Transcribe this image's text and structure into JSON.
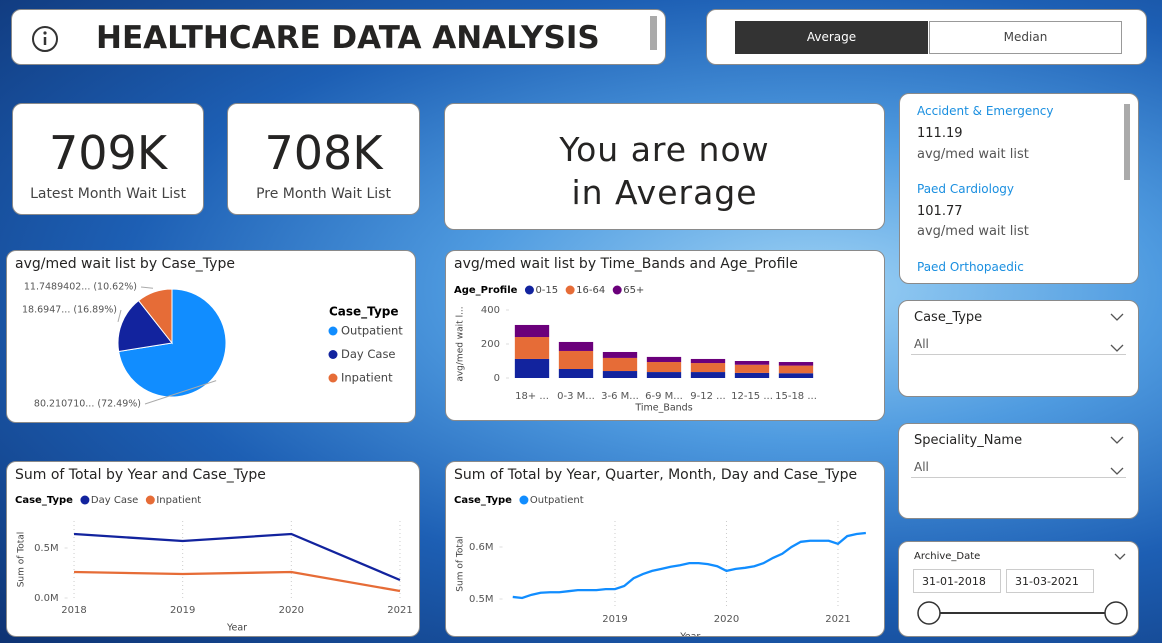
{
  "header": {
    "title": "HEALTHCARE DATA ANALYSIS"
  },
  "toggle": {
    "options": [
      "Average",
      "Median"
    ]
  },
  "cards": [
    {
      "value": "709K",
      "label": "Latest Month Wait List"
    },
    {
      "value": "708K",
      "label": "Pre Month Wait List"
    }
  ],
  "banner": {
    "text": "You are now in Average"
  },
  "list": {
    "items": [
      {
        "name": "Accident & Emergency",
        "value": 111.19,
        "label": "avg/med wait list"
      },
      {
        "name": "Paed Cardiology",
        "value": 101.77,
        "label": "avg/med wait list"
      },
      {
        "name": "Paed Orthopaedic"
      }
    ]
  },
  "slicers": [
    {
      "title": "Case_Type",
      "value": "All"
    },
    {
      "title": "Speciality_Name",
      "value": "All"
    },
    {
      "title": "Archive_Date",
      "from": "31-01-2018",
      "to": "31-03-2021"
    }
  ],
  "chart_data": [
    {
      "type": "pie",
      "title": "avg/med wait list by Case_Type",
      "legend_title": "Case_Type",
      "categories": [
        "Outpatient",
        "Day Case",
        "Inpatient"
      ],
      "values": [
        80.21071,
        18.6947,
        11.7489402
      ],
      "value_labels": [
        "80.210710... (72.49%)",
        "18.6947... (16.89%)",
        "11.7489402... (10.62%)"
      ],
      "colors": [
        "#118DFF",
        "#12239E",
        "#E66C37"
      ]
    },
    {
      "type": "bar",
      "stacked": true,
      "title": "avg/med wait list by Time_Bands and Age_Profile",
      "legend_title": "Age_Profile",
      "x_label": "Time_Bands",
      "y_label": "avg/med wait l...",
      "categories": [
        "18+ ...",
        "0-3 M...",
        "3-6 M...",
        "6-9 M...",
        "9-12 ...",
        "12-15 ...",
        "15-18 ..."
      ],
      "series": [
        {
          "name": "0-15",
          "color": "#12239E",
          "values": [
            112,
            53,
            41,
            35,
            35,
            30,
            28
          ]
        },
        {
          "name": "16-64",
          "color": "#E66C37",
          "values": [
            129,
            106,
            77,
            59,
            53,
            48,
            45
          ]
        },
        {
          "name": "65+",
          "color": "#6B007B",
          "values": [
            71,
            53,
            35,
            30,
            24,
            22,
            21
          ]
        }
      ],
      "ylim": [
        0,
        400
      ],
      "yticks": [
        0,
        200,
        400
      ]
    },
    {
      "type": "line",
      "title": "Sum of Total by Year and Case_Type",
      "legend_title": "Case_Type",
      "x_label": "Year",
      "y_label": "Sum of Total",
      "x": [
        2018,
        2019,
        2020,
        2021
      ],
      "series": [
        {
          "name": "Day Case",
          "color": "#12239E",
          "values": [
            640000,
            570000,
            640000,
            180000
          ]
        },
        {
          "name": "Inpatient",
          "color": "#E66C37",
          "values": [
            260000,
            240000,
            260000,
            70000
          ]
        }
      ],
      "xlim": [
        2017.95,
        2021.05
      ],
      "xticks": [
        2018,
        2019,
        2020,
        2021
      ],
      "ylim": [
        0,
        770000
      ],
      "yticks": [
        {
          "value": 0,
          "label": "0.0M"
        },
        {
          "value": 500000,
          "label": "0.5M"
        }
      ],
      "grid": true
    },
    {
      "type": "line",
      "title": "Sum of Total by Year, Quarter, Month, Day and Case_Type",
      "legend_title": "Case_Type",
      "x_label": "Year",
      "y_label": "Sum of Total",
      "x": [
        2018.083,
        2018.167,
        2018.25,
        2018.333,
        2018.417,
        2018.5,
        2018.583,
        2018.667,
        2018.75,
        2018.833,
        2018.917,
        2019,
        2019.083,
        2019.167,
        2019.25,
        2019.333,
        2019.417,
        2019.5,
        2019.583,
        2019.667,
        2019.75,
        2019.833,
        2019.917,
        2020,
        2020.083,
        2020.167,
        2020.25,
        2020.333,
        2020.417,
        2020.5,
        2020.583,
        2020.667,
        2020.75,
        2020.833,
        2020.917,
        2021,
        2021.083,
        2021.167,
        2021.25
      ],
      "series": [
        {
          "name": "Outpatient",
          "color": "#118DFF",
          "values": [
            504000,
            502000,
            508000,
            512000,
            513000,
            513000,
            515000,
            517000,
            517000,
            517000,
            519000,
            519000,
            525000,
            540000,
            548000,
            554000,
            558000,
            562000,
            565000,
            569000,
            569000,
            567000,
            563000,
            554000,
            558000,
            560000,
            563000,
            569000,
            579000,
            587000,
            600000,
            610000,
            612000,
            612000,
            612000,
            606000,
            621000,
            625000,
            627000
          ]
        }
      ],
      "xlim": [
        2018,
        2021.35
      ],
      "xticks": [
        2019,
        2020,
        2021
      ],
      "ylim": [
        485000,
        650000
      ],
      "yticks": [
        {
          "value": 500000,
          "label": "0.5M"
        },
        {
          "value": 600000,
          "label": "0.6M"
        }
      ],
      "grid": true
    }
  ]
}
